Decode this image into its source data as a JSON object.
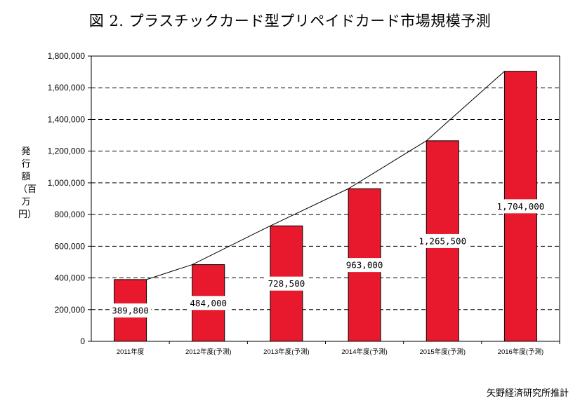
{
  "title": "図 2.  プラスチックカード型プリペイドカード市場規模予測",
  "source": "矢野経済研究所推計",
  "chart_data": {
    "type": "bar",
    "title": "図 2.  プラスチックカード型プリペイドカード市場規模予測",
    "ylabel": "発行額（百万円）",
    "xlabel": "",
    "categories": [
      "2011年度",
      "2012年度(予測)",
      "2013年度(予測)",
      "2014年度(予測)",
      "2015年度(予測)",
      "2016年度(予測)"
    ],
    "values": [
      389800,
      484000,
      728500,
      963000,
      1265500,
      1704000
    ],
    "data_labels": [
      "389,800",
      "484,000",
      "728,500",
      "963,000",
      "1,265,500",
      "1,704,000"
    ],
    "ylim": [
      0,
      1800000
    ],
    "yticks": [
      0,
      200000,
      400000,
      600000,
      800000,
      1000000,
      1200000,
      1400000,
      1600000,
      1800000
    ],
    "ytick_labels": [
      "0",
      "200,000",
      "400,000",
      "600,000",
      "800,000",
      "1,000,000",
      "1,200,000",
      "1,400,000",
      "1,600,000",
      "1,800,000"
    ],
    "grid": true,
    "trend_line": true,
    "bar_color": "#e8192c"
  }
}
